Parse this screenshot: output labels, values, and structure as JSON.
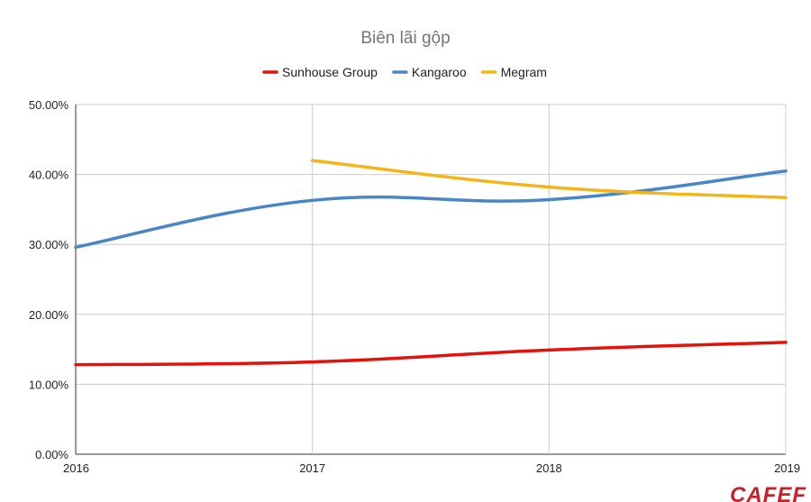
{
  "chart_data": {
    "type": "line",
    "title": "Biên lãi gộp",
    "xlabel": "",
    "ylabel": "",
    "categories": [
      "2016",
      "2017",
      "2018",
      "2019"
    ],
    "ylim": [
      0,
      50
    ],
    "yticks": [
      "0.00%",
      "10.00%",
      "20.00%",
      "30.00%",
      "40.00%",
      "50.00%"
    ],
    "grid": true,
    "legend_position": "top",
    "series": [
      {
        "name": "Sunhouse Group",
        "color": "#e3120b",
        "values": [
          12.8,
          13.2,
          14.9,
          16.0
        ]
      },
      {
        "name": "Kangaroo",
        "color": "#4a86c5",
        "values": [
          29.6,
          36.3,
          36.4,
          40.5
        ]
      },
      {
        "name": "Megram",
        "color": "#f2b51b",
        "values": [
          null,
          42.0,
          38.2,
          36.7
        ]
      }
    ]
  },
  "watermark": {
    "text": "CAFEF",
    "color": "#c8202a"
  }
}
